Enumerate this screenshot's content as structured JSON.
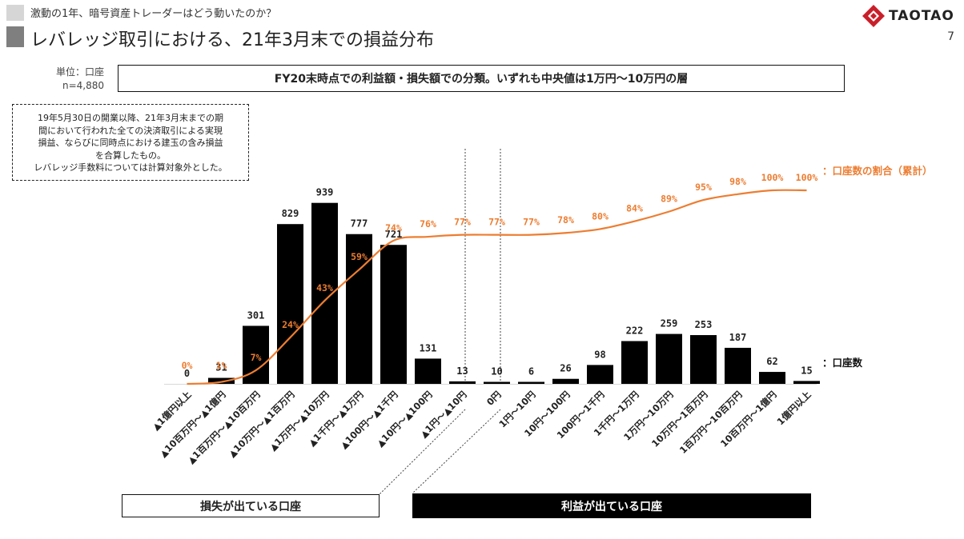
{
  "header": {
    "supertitle": "激動の1年、暗号資産トレーダーはどう動いたのか？",
    "title": "レバレッジ取引における、21年3月末での損益分布",
    "page_number": "7",
    "logo_text": "TAOTAO"
  },
  "unit_label": "単位：口座",
  "sample_label": "n=4,880",
  "headline": "FY20末時点での利益額・損失額での分類。いずれも中央値は1万円～10万円の層",
  "note_lines": [
    "19年5月30日の開業以降、21年3月末までの期",
    "間において行われた全ての決済取引による実現",
    "損益、ならびに同時点における建玉の含み損益",
    "を合算したもの。",
    "レバレッジ手数料については計算対象外とした。"
  ],
  "bottom_labels": {
    "loss": "損失が出ている口座",
    "profit": "利益が出ている口座"
  },
  "colors": {
    "bar": "#000000",
    "line": "#ED7D31"
  },
  "chart_data": {
    "type": "bar+line",
    "categories": [
      "▲1億円以上",
      "▲10百万円～▲1億円",
      "▲1百万円～▲10百万円",
      "▲10万円～▲1百万円",
      "▲1万円～▲10万円",
      "▲1千円～▲1万円",
      "▲100円～▲1千円",
      "▲10円～▲100円",
      "▲1円～▲10円",
      "0円",
      "1円～10円",
      "10円～100円",
      "100円～1千円",
      "1千円～1万円",
      "1万円～10万円",
      "10万円～1百万円",
      "1百万円～10百万円",
      "10百万円～1億円",
      "1億円以上"
    ],
    "series": [
      {
        "name": "：口座数",
        "type": "bar",
        "values": [
          0,
          31,
          301,
          829,
          939,
          777,
          721,
          131,
          13,
          10,
          6,
          26,
          98,
          222,
          259,
          253,
          187,
          62,
          15
        ]
      },
      {
        "name": "：口座数の割合（累計）",
        "type": "line",
        "values": [
          0,
          1,
          7,
          24,
          43,
          59,
          74,
          76,
          77,
          77,
          77,
          78,
          80,
          84,
          89,
          95,
          98,
          100,
          100
        ],
        "labels": [
          "0%",
          "1%",
          "7%",
          "24%",
          "43%",
          "59%",
          "74%",
          "76%",
          "77%",
          "77%",
          "77%",
          "78%",
          "80%",
          "84%",
          "89%",
          "95%",
          "98%",
          "100%",
          "100%"
        ]
      }
    ],
    "ylim": [
      0,
      1000
    ],
    "y2lim": [
      0,
      100
    ]
  }
}
